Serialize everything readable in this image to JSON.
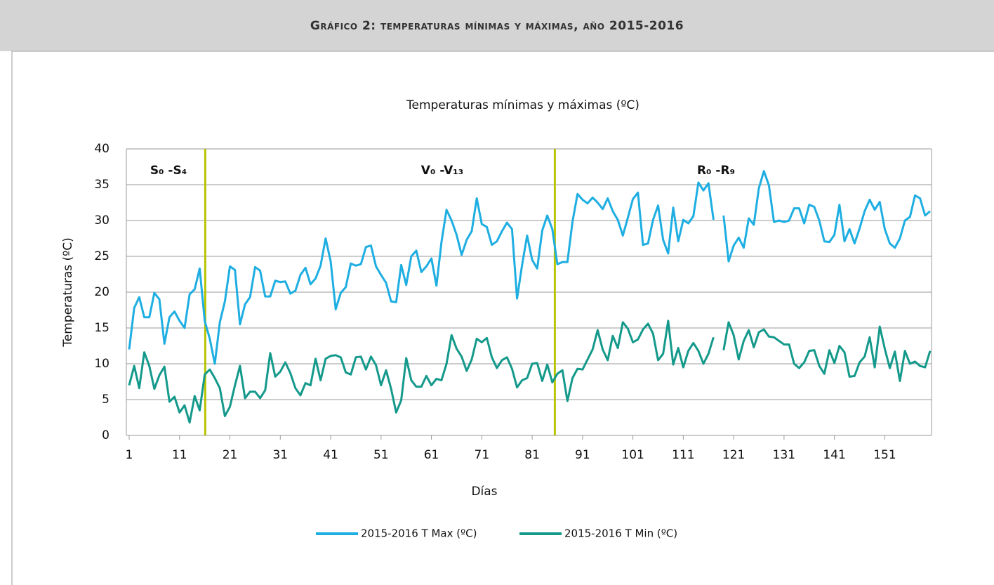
{
  "header": {
    "title": "Gráfico 2: temperaturas mínimas y máximas, año 2015-2016"
  },
  "chart_data": {
    "type": "line",
    "title": "Temperaturas mínimas y máximas (ºC)",
    "x_label": "Días",
    "y_label": "Temperaturas  (ºC)",
    "x": [
      1,
      2,
      3,
      4,
      5,
      6,
      7,
      8,
      9,
      10,
      11,
      12,
      13,
      14,
      15,
      16,
      17,
      18,
      19,
      20,
      21,
      22,
      23,
      24,
      25,
      26,
      27,
      28,
      29,
      30,
      31,
      32,
      33,
      34,
      35,
      36,
      37,
      38,
      39,
      40,
      41,
      42,
      43,
      44,
      45,
      46,
      47,
      48,
      49,
      50,
      51,
      52,
      53,
      54,
      55,
      56,
      57,
      58,
      59,
      60,
      61,
      62,
      63,
      64,
      65,
      66,
      67,
      68,
      69,
      70,
      71,
      72,
      73,
      74,
      75,
      76,
      77,
      78,
      79,
      80,
      81,
      82,
      83,
      84,
      85,
      86,
      87,
      88,
      89,
      90,
      91,
      92,
      93,
      94,
      95,
      96,
      97,
      98,
      99,
      100,
      101,
      102,
      103,
      104,
      105,
      106,
      107,
      108,
      109,
      110,
      111,
      112,
      113,
      114,
      115,
      116,
      117,
      118,
      119,
      120,
      121,
      122,
      123,
      124,
      125,
      126,
      127,
      128,
      129,
      130,
      131,
      132,
      133,
      134,
      135,
      136,
      137,
      138,
      139,
      140,
      141,
      142,
      143,
      144,
      145,
      146,
      147,
      148,
      149,
      150,
      151,
      152,
      153,
      154,
      155,
      156,
      157,
      158,
      159,
      160
    ],
    "series": [
      {
        "name": "2015-2016 T Max (ºC)",
        "color": "#1eaee2",
        "values": [
          12,
          17.8,
          19.3,
          16.5,
          16.5,
          19.9,
          19,
          12.8,
          16.5,
          17.3,
          16,
          15,
          19.7,
          20.4,
          23.3,
          16,
          13.5,
          10,
          15.8,
          18.7,
          23.6,
          23.1,
          15.5,
          18.3,
          19.3,
          23.5,
          23,
          19.4,
          19.4,
          21.6,
          21.4,
          21.5,
          19.8,
          20.2,
          22.4,
          23.4,
          21.1,
          21.9,
          23.7,
          27.5,
          24.3,
          17.6,
          19.9,
          20.7,
          24,
          23.7,
          23.9,
          26.3,
          26.5,
          23.6,
          22.4,
          21.3,
          18.7,
          18.6,
          23.8,
          21,
          25,
          25.8,
          22.8,
          23.6,
          24.7,
          20.9,
          27,
          31.5,
          30,
          28,
          25.2,
          27.3,
          28.5,
          33.1,
          29.5,
          29.1,
          26.6,
          27.1,
          28.5,
          29.7,
          28.8,
          19.1,
          23.8,
          27.9,
          24.5,
          23.3,
          28.6,
          30.7,
          28.8,
          23.9,
          24.2,
          24.2,
          29.8,
          33.7,
          32.9,
          32.4,
          33.2,
          32.5,
          31.6,
          33.1,
          31.3,
          30.1,
          27.9,
          30.4,
          33,
          33.9,
          26.6,
          26.8,
          30.1,
          32.1,
          27.3,
          25.4,
          31.8,
          27.1,
          30.1,
          29.6,
          30.6,
          35.3,
          34.2,
          35.2,
          30.1,
          null,
          30.7,
          24.3,
          26.5,
          27.6,
          26.2,
          30.3,
          29.4,
          34.5,
          36.9,
          34.9,
          29.8,
          30,
          29.8,
          30,
          31.7,
          31.7,
          29.6,
          32.2,
          31.9,
          30,
          27.1,
          27,
          28,
          32.2,
          27.1,
          28.8,
          26.8,
          28.9,
          31.3,
          32.9,
          31.5,
          32.6,
          28.8,
          26.8,
          26.2,
          27.5,
          30,
          30.5,
          33.5,
          33.1,
          30.7,
          31.3
        ]
      },
      {
        "name": "2015-2016 T Min (ºC)",
        "color": "#14998b",
        "values": [
          7,
          9.7,
          6.6,
          11.6,
          9.7,
          6.5,
          8.4,
          9.6,
          4.7,
          5.4,
          3.2,
          4.2,
          1.8,
          5.5,
          3.5,
          8.5,
          9.2,
          8,
          6.6,
          2.7,
          4,
          7,
          9.7,
          5.2,
          6.1,
          6.1,
          5.2,
          6.3,
          11.5,
          8.2,
          8.9,
          10.2,
          8.7,
          6.6,
          5.6,
          7.3,
          7,
          10.7,
          7.7,
          10.7,
          11.1,
          11.2,
          10.9,
          8.8,
          8.5,
          10.9,
          11,
          9.2,
          11,
          9.8,
          7,
          9.1,
          6.5,
          3.2,
          4.9,
          10.8,
          7.7,
          6.8,
          6.8,
          8.3,
          7,
          7.9,
          7.7,
          10,
          14,
          12.1,
          11,
          9,
          10.6,
          13.5,
          13,
          13.6,
          10.9,
          9.4,
          10.5,
          10.9,
          9.3,
          6.7,
          7.7,
          8,
          10,
          10.1,
          7.6,
          9.9,
          7.4,
          8.6,
          9.1,
          4.8,
          8,
          9.3,
          9.2,
          10.6,
          12,
          14.7,
          12,
          10.5,
          13.9,
          12.2,
          15.8,
          14.9,
          13,
          13.4,
          14.8,
          15.6,
          14.2,
          10.5,
          11.4,
          16,
          9.9,
          12.2,
          9.5,
          11.8,
          12.9,
          11.8,
          10,
          11.4,
          13.7,
          null,
          11.9,
          15.8,
          14,
          10.6,
          13.2,
          14.7,
          12.3,
          14.4,
          14.8,
          13.8,
          13.7,
          13.2,
          12.7,
          12.7,
          10,
          9.4,
          10.2,
          11.8,
          11.9,
          9.7,
          8.6,
          11.9,
          10.1,
          12.5,
          11.6,
          8.2,
          8.3,
          10.2,
          11,
          13.7,
          9.5,
          15.2,
          12.1,
          9.4,
          11.7,
          7.6,
          11.8,
          10,
          10.3,
          9.7,
          9.5,
          11.8
        ]
      }
    ],
    "xlim": [
      1,
      160
    ],
    "xticks": [
      1,
      11,
      21,
      31,
      41,
      51,
      61,
      71,
      81,
      91,
      101,
      111,
      121,
      131,
      141,
      151
    ],
    "ylim": [
      0,
      40
    ],
    "yticks": [
      0,
      5,
      10,
      15,
      20,
      25,
      30,
      35,
      40
    ],
    "grid": true,
    "vlines": [
      16.1,
      85.5
    ],
    "vline_color": "#b8c400",
    "annotations": [
      "S₀ -S₄",
      "V₀ -V₁₃",
      "R₀ -R₉"
    ],
    "legend": "bottom"
  }
}
